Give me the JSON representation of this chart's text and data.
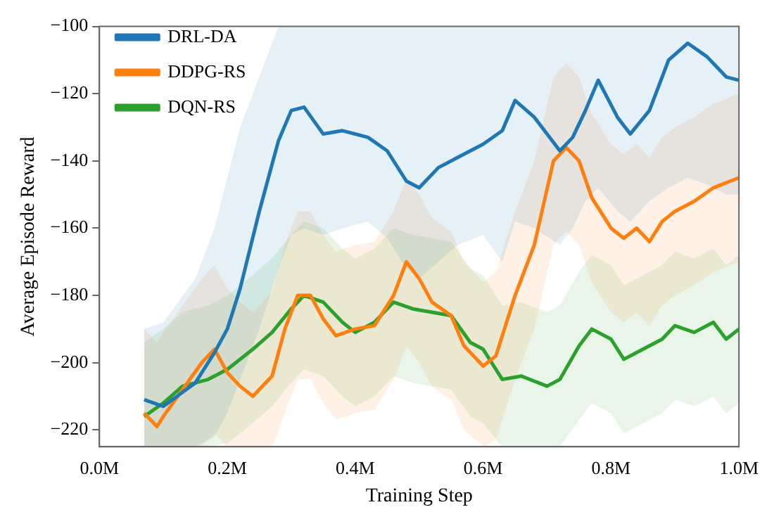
{
  "chart_data": {
    "type": "line",
    "xlabel": "Training Step",
    "ylabel": "Average Episode Reward",
    "xlim": [
      0,
      1000000
    ],
    "ylim": [
      -225,
      -100
    ],
    "xticks": [
      {
        "value": 0,
        "label": "0.0M"
      },
      {
        "value": 200000,
        "label": "0.2M"
      },
      {
        "value": 400000,
        "label": "0.4M"
      },
      {
        "value": 600000,
        "label": "0.6M"
      },
      {
        "value": 800000,
        "label": "0.8M"
      },
      {
        "value": 1000000,
        "label": "1.0M"
      }
    ],
    "yticks": [
      {
        "value": -220,
        "label": "−220"
      },
      {
        "value": -200,
        "label": "−200"
      },
      {
        "value": -180,
        "label": "−180"
      },
      {
        "value": -160,
        "label": "−160"
      },
      {
        "value": -140,
        "label": "−140"
      },
      {
        "value": -120,
        "label": "−120"
      },
      {
        "value": -100,
        "label": "−100"
      }
    ],
    "grid": false,
    "legend": "top left",
    "marker": "none",
    "line_style": "solid",
    "series": [
      {
        "name": "DRL-DA",
        "color": "#1f77b4",
        "x": [
          70000,
          100000,
          150000,
          180000,
          200000,
          220000,
          250000,
          280000,
          300000,
          320000,
          350000,
          380000,
          420000,
          450000,
          480000,
          500000,
          530000,
          560000,
          600000,
          630000,
          650000,
          680000,
          720000,
          740000,
          760000,
          780000,
          810000,
          830000,
          860000,
          890000,
          920000,
          950000,
          980000,
          1000000
        ],
        "values": [
          -211,
          -213,
          -206,
          -197,
          -190,
          -178,
          -155,
          -134,
          -125,
          -124,
          -132,
          -131,
          -133,
          -137,
          -146,
          -148,
          -142,
          -139,
          -135,
          -131,
          -122,
          -127,
          -137,
          -133,
          -125,
          -116,
          -127,
          -132,
          -125,
          -110,
          -105,
          -109,
          -115,
          -116
        ],
        "upper": [
          -190,
          -188,
          -175,
          -160,
          -145,
          -130,
          -115,
          -100,
          -100,
          -100,
          -100,
          -100,
          -100,
          -100,
          -100,
          -100,
          -100,
          -100,
          -100,
          -100,
          -100,
          -100,
          -100,
          -100,
          -100,
          -100,
          -100,
          -100,
          -100,
          -100,
          -100,
          -100,
          -100,
          -100
        ],
        "lower": [
          -225,
          -225,
          -225,
          -222,
          -215,
          -205,
          -190,
          -172,
          -162,
          -160,
          -162,
          -160,
          -158,
          -163,
          -172,
          -175,
          -170,
          -165,
          -162,
          -170,
          -158,
          -160,
          -165,
          -160,
          -152,
          -148,
          -155,
          -158,
          -152,
          -148,
          -145,
          -147,
          -150,
          -150
        ]
      },
      {
        "name": "DDPG-RS",
        "color": "#ff7f0e",
        "x": [
          70000,
          90000,
          100000,
          130000,
          160000,
          180000,
          200000,
          220000,
          240000,
          270000,
          290000,
          310000,
          330000,
          350000,
          370000,
          400000,
          430000,
          460000,
          480000,
          500000,
          520000,
          550000,
          570000,
          600000,
          620000,
          650000,
          680000,
          710000,
          730000,
          750000,
          770000,
          800000,
          820000,
          840000,
          860000,
          880000,
          900000,
          930000,
          960000,
          1000000
        ],
        "values": [
          -215,
          -219,
          -216,
          -208,
          -200,
          -196,
          -203,
          -207,
          -210,
          -204,
          -190,
          -180,
          -180,
          -187,
          -192,
          -190,
          -189,
          -180,
          -170,
          -175,
          -182,
          -186,
          -195,
          -201,
          -198,
          -180,
          -165,
          -140,
          -136,
          -140,
          -151,
          -160,
          -163,
          -160,
          -164,
          -158,
          -155,
          -152,
          -148,
          -145
        ],
        "upper": [
          -190,
          -194,
          -191,
          -183,
          -175,
          -171,
          -178,
          -182,
          -185,
          -179,
          -165,
          -155,
          -155,
          -162,
          -167,
          -165,
          -164,
          -155,
          -145,
          -150,
          -157,
          -161,
          -170,
          -176,
          -173,
          -155,
          -140,
          -115,
          -111,
          -115,
          -126,
          -135,
          -138,
          -135,
          -139,
          -133,
          -130,
          -127,
          -123,
          -120
        ],
        "lower": [
          -225,
          -225,
          -225,
          -225,
          -225,
          -221,
          -225,
          -225,
          -225,
          -225,
          -215,
          -205,
          -205,
          -212,
          -217,
          -215,
          -214,
          -205,
          -195,
          -200,
          -207,
          -211,
          -220,
          -225,
          -223,
          -205,
          -190,
          -165,
          -161,
          -165,
          -176,
          -185,
          -188,
          -185,
          -189,
          -183,
          -180,
          -177,
          -173,
          -170
        ]
      },
      {
        "name": "DQN-RS",
        "color": "#2ca02c",
        "x": [
          70000,
          100000,
          130000,
          170000,
          200000,
          240000,
          270000,
          300000,
          320000,
          350000,
          380000,
          400000,
          430000,
          460000,
          490000,
          520000,
          550000,
          580000,
          600000,
          630000,
          660000,
          700000,
          720000,
          750000,
          770000,
          800000,
          820000,
          850000,
          880000,
          900000,
          930000,
          960000,
          980000,
          1000000
        ],
        "values": [
          -216,
          -212,
          -207,
          -205,
          -202,
          -196,
          -191,
          -184,
          -180,
          -182,
          -188,
          -191,
          -188,
          -182,
          -184,
          -185,
          -186,
          -194,
          -196,
          -205,
          -204,
          -207,
          -205,
          -195,
          -190,
          -193,
          -199,
          -196,
          -193,
          -189,
          -191,
          -188,
          -193,
          -190
        ],
        "upper": [
          -194,
          -190,
          -185,
          -183,
          -180,
          -174,
          -169,
          -162,
          -158,
          -160,
          -166,
          -169,
          -166,
          -160,
          -162,
          -163,
          -164,
          -172,
          -174,
          -183,
          -182,
          -185,
          -183,
          -173,
          -168,
          -171,
          -177,
          -174,
          -171,
          -167,
          -169,
          -166,
          -171,
          -168
        ],
        "lower": [
          -225,
          -225,
          -225,
          -225,
          -224,
          -218,
          -213,
          -206,
          -202,
          -204,
          -210,
          -213,
          -210,
          -204,
          -206,
          -207,
          -208,
          -216,
          -218,
          -225,
          -225,
          -225,
          -225,
          -217,
          -212,
          -215,
          -221,
          -218,
          -215,
          -211,
          -213,
          -210,
          -215,
          -212
        ]
      }
    ]
  }
}
